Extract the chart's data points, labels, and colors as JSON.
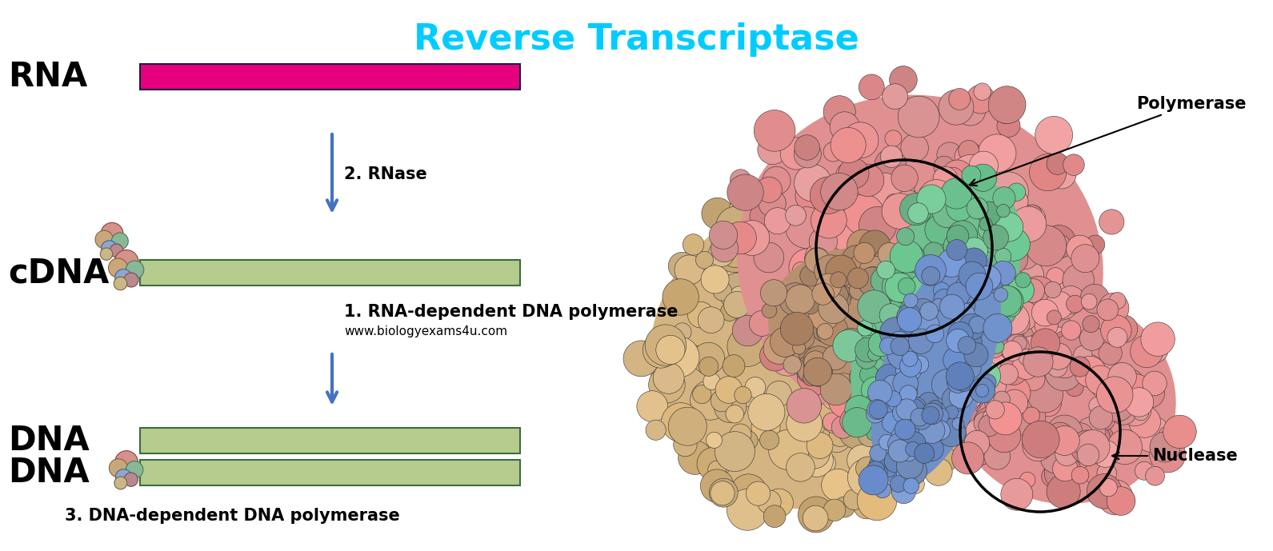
{
  "title": "Reverse Transcriptase",
  "title_color": "#00ccff",
  "title_fontsize": 32,
  "background_color": "#ffffff",
  "rna_label": "RNA",
  "cdna_label": "cDNA",
  "dna_label1": "DNA",
  "dna_label2": "DNA",
  "label_fontsize": 30,
  "rna_bar_color": "#e6007e",
  "rna_bar_edge_color": "#1a1a4a",
  "cdna_bar_color": "#b5cc8e",
  "dna_bar_color": "#b5cc8e",
  "bar_edge_color": "#3a6e3a",
  "arrow_color": "#4472c4",
  "label1_text": "1. RNA-dependent DNA polymerase",
  "label2_text": "2. RNase",
  "label3_text": "3. DNA-dependent DNA polymerase",
  "website_text": "www.biologyexams4u.com",
  "label_fontsize2": 15,
  "website_fontsize": 11,
  "polymerase_label": "Polymerase",
  "nuclease_label": "Nuclease",
  "annotation_fontsize": 15
}
